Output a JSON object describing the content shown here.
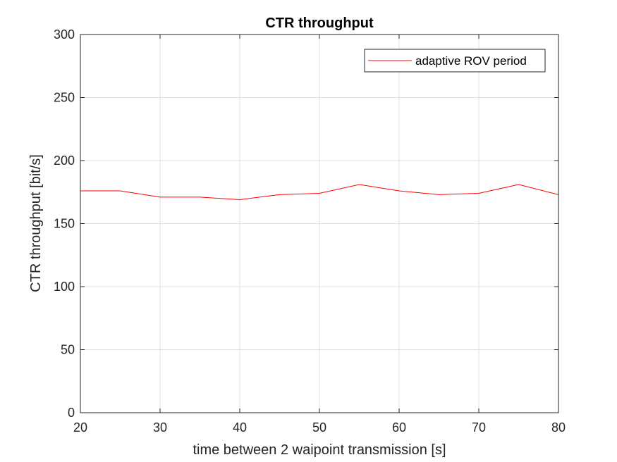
{
  "chart_data": {
    "type": "line",
    "title": "CTR throughput",
    "xlabel": "time between 2 waipoint transmission [s]",
    "ylabel": "CTR throughput [bit/s]",
    "xlim": [
      20,
      80
    ],
    "ylim": [
      0,
      300
    ],
    "xticks": [
      20,
      30,
      40,
      50,
      60,
      70,
      80
    ],
    "yticks": [
      0,
      50,
      100,
      150,
      200,
      250,
      300
    ],
    "grid": true,
    "legend_position": "top-right",
    "series": [
      {
        "name": "adaptive ROV period",
        "color": "#ff0000",
        "x": [
          20,
          25,
          30,
          35,
          40,
          45,
          50,
          55,
          60,
          65,
          70,
          75,
          80
        ],
        "y": [
          176,
          176,
          171,
          171,
          169,
          173,
          174,
          181,
          176,
          173,
          174,
          181,
          173
        ]
      }
    ]
  }
}
